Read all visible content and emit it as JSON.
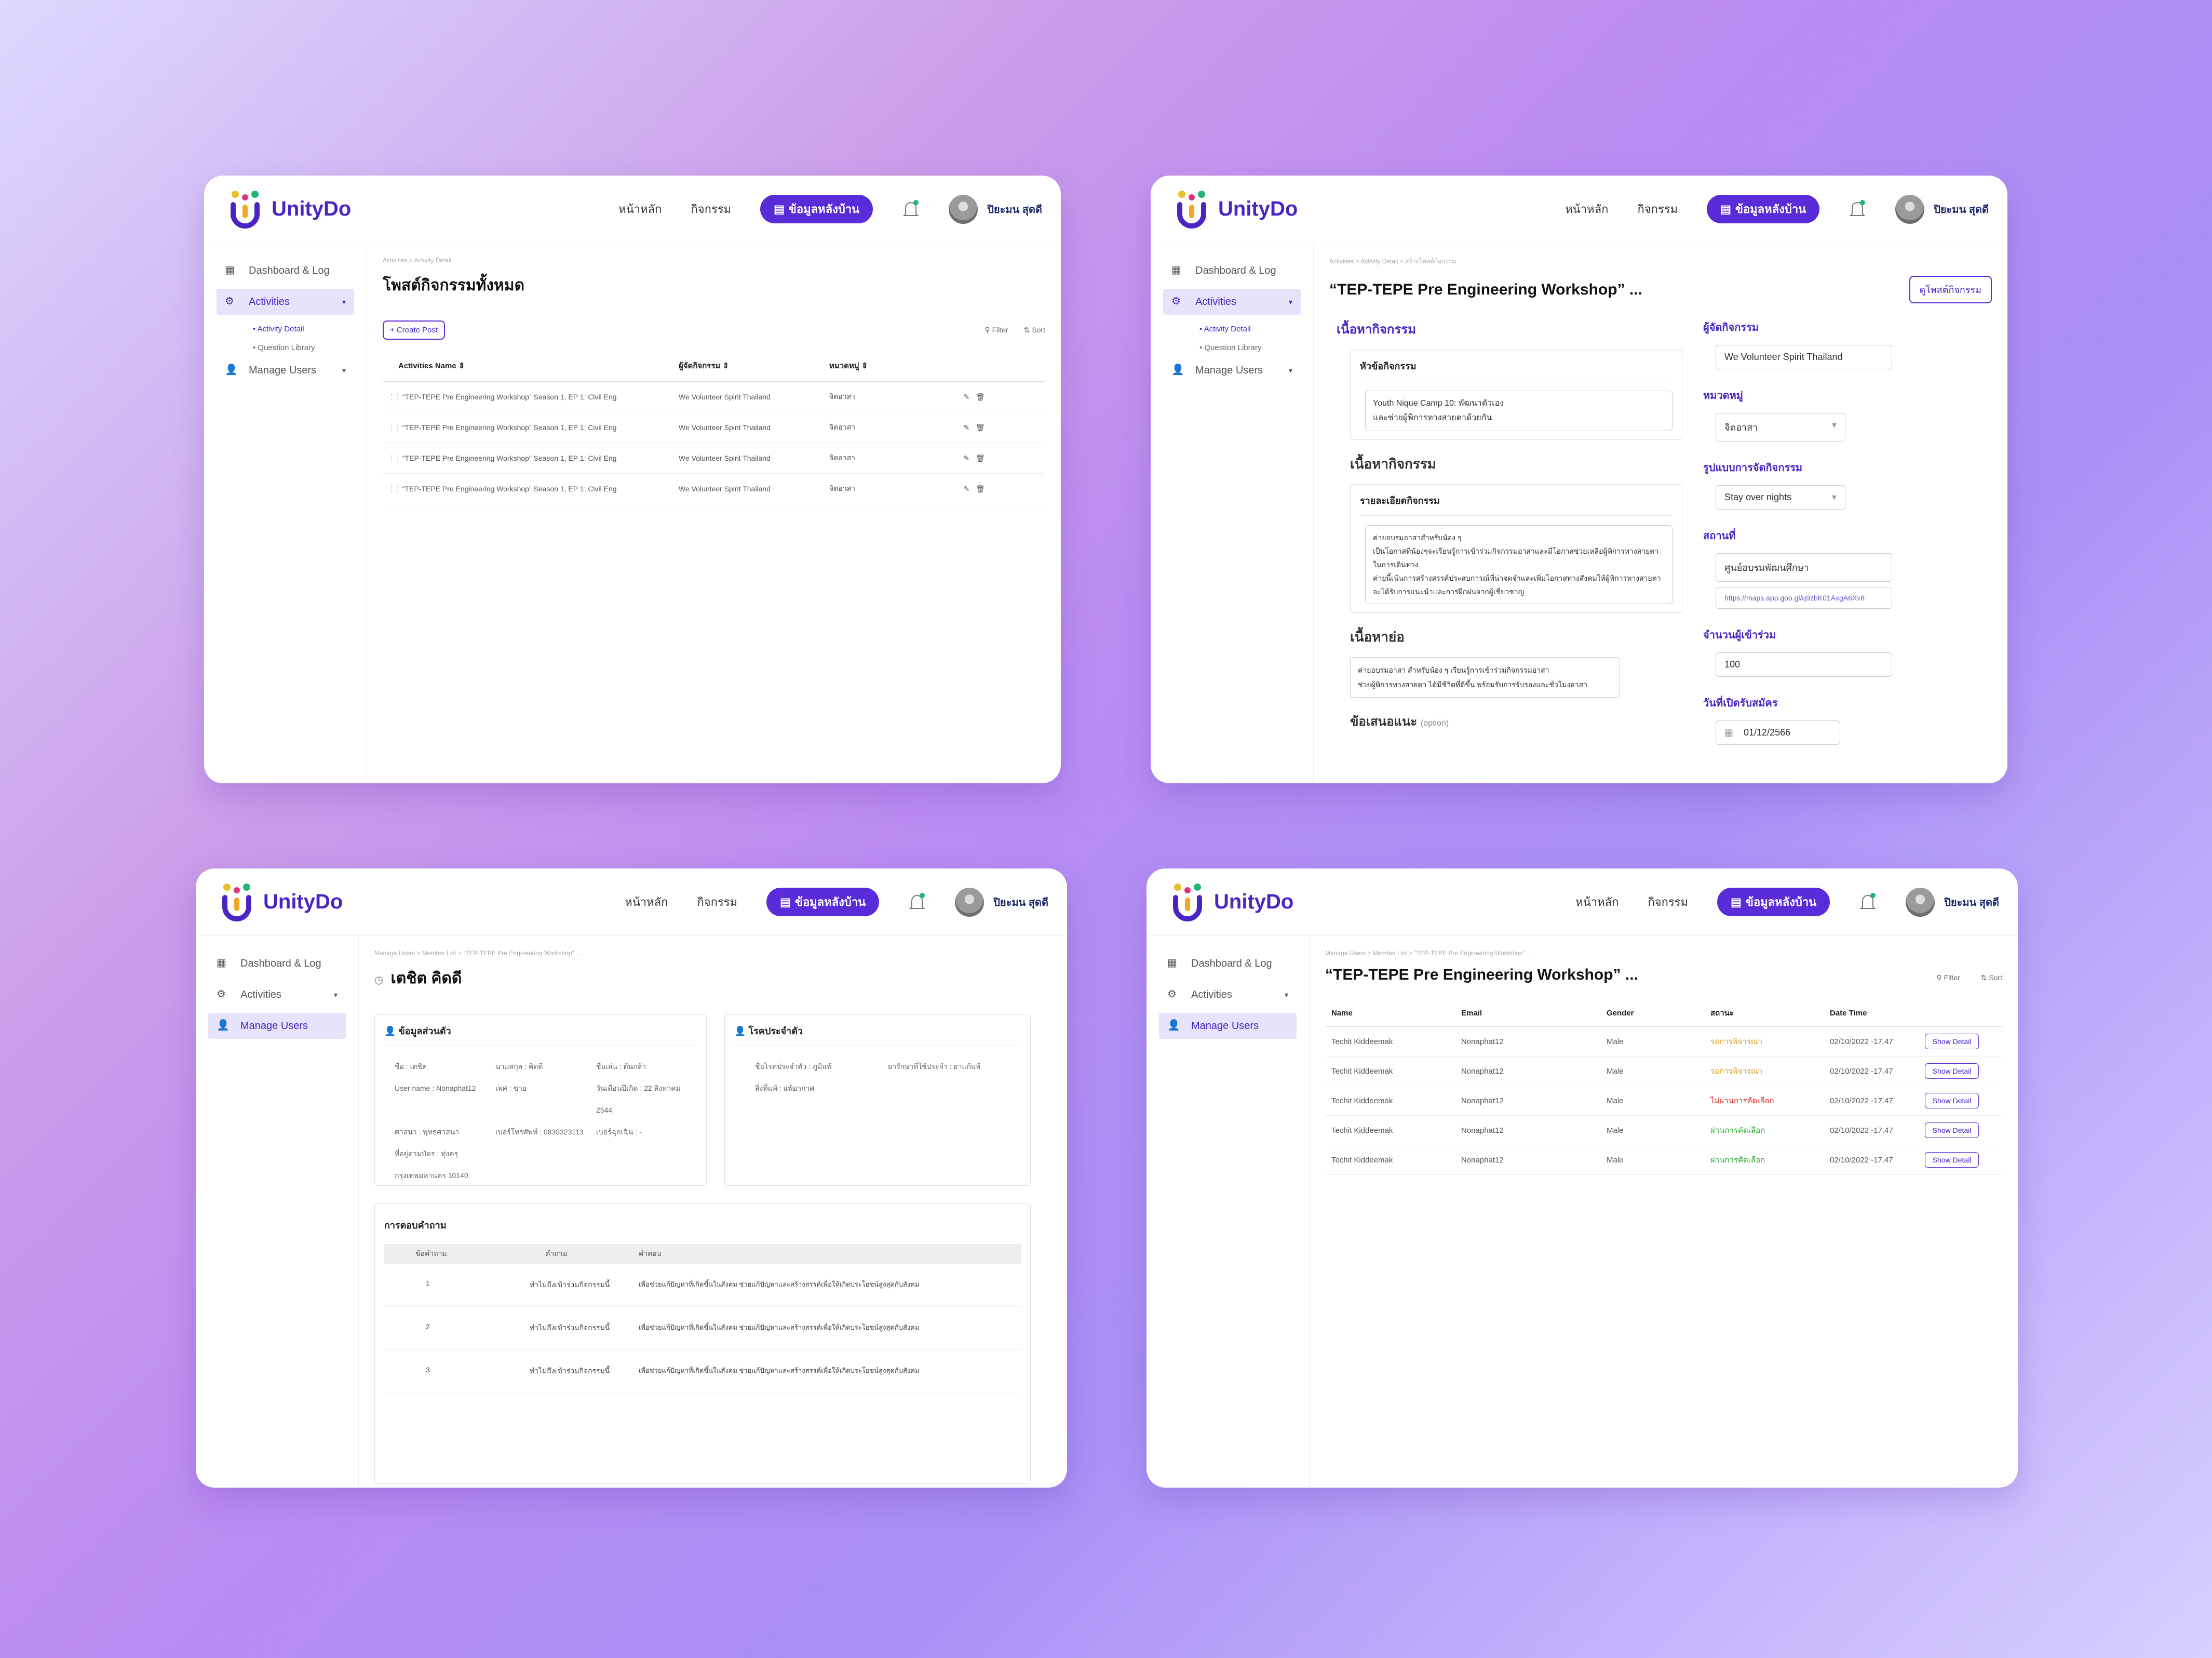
{
  "nav": {
    "brand": "UnityDo",
    "home": "หน้าหลัก",
    "activities": "กิจกรรม",
    "backend": "ข้อมูลหลังบ้าน",
    "user": "ปิยะมน สุดดี"
  },
  "sidebar": {
    "dashboard": "Dashboard & Log",
    "activities": "Activities",
    "activity_detail": "Activity Detail",
    "question_library": "Question Library",
    "manage_users": "Manage Users"
  },
  "screen1": {
    "breadcrumb": "Activities > Activity Detail",
    "title": "โพสต์กิจกรรมทั้งหมด",
    "create": "+ Create Post",
    "filter": "Filter",
    "sort": "Sort",
    "columns": [
      "Activities Name",
      "ผู้จัดกิจกรรม",
      "หมวดหมู่"
    ],
    "rows": [
      {
        "name": "“TEP-TEPE Pre Engineering Workshop” Season 1, EP 1: Civil Eng",
        "org": "We Volunteer Spirit Thailand",
        "cat": "จิตอาสา"
      },
      {
        "name": "“TEP-TEPE Pre Engineering Workshop” Season 1, EP 1: Civil Eng",
        "org": "We Volunteer Spirit Thailand",
        "cat": "จิตอาสา"
      },
      {
        "name": "“TEP-TEPE Pre Engineering Workshop” Season 1, EP 1: Civil Eng",
        "org": "We Volunteer Spirit Thailand",
        "cat": "จิตอาสา"
      },
      {
        "name": "“TEP-TEPE Pre Engineering Workshop” Season 1, EP 1: Civil Eng",
        "org": "We Volunteer Spirit Thailand",
        "cat": "จิตอาสา"
      }
    ]
  },
  "screen2": {
    "breadcrumb": "Activities > Activity Detail > สร้างโพสต์กิจกรรม",
    "title": "“TEP-TEPE Pre Engineering Workshop” ...",
    "view_post": "ดูโพสต์กิจกรรม",
    "content_h": "เนื้อหากิจกรรม",
    "topic_lbl": "หัวข้อกิจกรรม",
    "topic_val": "Youth Nique Camp 10: พัฒนาตัวเอง\nและช่วยผู้พิการทางสายตาด้วยกัน",
    "content_sub": "เนื้อหากิจกรรม",
    "detail_lbl": "รายละเอียดกิจกรรม",
    "detail_val": "ค่ายอบรมอาสาสำหรับน้อง ๆ\nเป็นโอกาสที่น้องๆจะเรียนรู้การเข้าร่วมกิจกรรมอาสาและมีโอกาสช่วยเหลือผู้พิการทางสายตาในการเดินทาง\nค่ายนี้เน้นการสร้างสรรค์ประสบการณ์ที่น่าจดจำและเพิ่มโอกาสทางสังคมให้ผู้พิการทางสายตา\nจะได้รับการแนะนำและการฝึกฝนจากผู้เชี่ยวชาญ",
    "summary_h": "เนื้อหาย่อ",
    "summary_val": "ค่ายอบรมอาสา สำหรับน้อง ๆ เรียนรู้การเข้าร่วมกิจกรรมอาสา\nช่วยผู้พิการทางสายตา ได้มีชีวิตที่ดีขึ้น พร้อมรับการรับรองและชั่วโมงอาสา",
    "suggest_h": "ข้อเสนอแนะ",
    "option": "(option)",
    "org_lbl": "ผู้จัดกิจกรรม",
    "org_val": "We Volunteer Spirit Thailand",
    "cat_lbl": "หมวดหมู่",
    "cat_val": "จิตอาสา",
    "fmt_lbl": "รูปแบบการจัดกิจกรรม",
    "fmt_val": "Stay over nights",
    "place_lbl": "สถานที่",
    "place_val": "ศูนย์อบรมพัฒนศึกษา",
    "map_val": "https://maps.app.goo.gl/q9zbK01AxgA6Xv8",
    "count_lbl": "จำนวนผู้เข้าร่วม",
    "count_val": "100",
    "open_lbl": "วันที่เปิดรับสมัคร",
    "open_val": "01/12/2566"
  },
  "screen3": {
    "breadcrumb": "Manage Users > Member List > “TEP-TEPE Pre Engineering Workshop” ...",
    "title": "เตชิต คิดดี",
    "personal_h": "ข้อมูลส่วนตัว",
    "personal": [
      "ชื่อ : เตชิต",
      "นามสกุล : คิดดี",
      "ชื่อเล่น : ต้นกล้า",
      "User name : Nonaphat12",
      "เพศ : ชาย",
      "วันเดือนปีเกิด : 22 สิงหาคม 2544",
      "ศาสนา : พุทธศาสนา",
      "เบอร์โทรศัพท์ : 0839323113",
      "เบอร์ฉุกเฉิน : -",
      "ที่อยู่ตามบัตร : ทุ่งครุ กรุงเทพมหานคร 10140"
    ],
    "health_h": "โรคประจำตัว",
    "health": [
      "ชื่อโรคประจำตัว : ภูมิแพ้",
      "ยารักษาที่ใช้ประจำ : ยาแก้แพ้",
      "สิ่งที่แพ้ : แพ้อากาศ"
    ],
    "qa_h": "การตอบคำถาม",
    "qa_cols": [
      "ข้อคำถาม",
      "คำถาม",
      "คำตอบ"
    ],
    "qa": [
      {
        "n": "1",
        "q": "ทำไมถึงเข้าร่วมกิจกรรมนี้",
        "a": "เพื่อช่วยแก้ปัญหาที่เกิดขึ้นในสังคม ช่วยแก้ปัญหาและสร้างสรรค์เพื่อให้เกิดประโยชน์สูงสุดกับสังคม"
      },
      {
        "n": "2",
        "q": "ทำไมถึงเข้าร่วมกิจกรรมนี้",
        "a": "เพื่อช่วยแก้ปัญหาที่เกิดขึ้นในสังคม ช่วยแก้ปัญหาและสร้างสรรค์เพื่อให้เกิดประโยชน์สูงสุดกับสังคม"
      },
      {
        "n": "3",
        "q": "ทำไมถึงเข้าร่วมกิจกรรมนี้",
        "a": "เพื่อช่วยแก้ปัญหาที่เกิดขึ้นในสังคม ช่วยแก้ปัญหาและสร้างสรรค์เพื่อให้เกิดประโยชน์สูงสุดกับสังคม"
      }
    ]
  },
  "screen4": {
    "breadcrumb": "Manage Users > Member List > “TEP-TEPE Pre Engineering Workshop” ...",
    "title": "“TEP-TEPE Pre Engineering Workshop” ...",
    "filter": "Filter",
    "sort": "Sort",
    "columns": [
      "Name",
      "Email",
      "Gender",
      "สถานะ",
      "Date Time"
    ],
    "show": "Show Detail",
    "rows": [
      {
        "name": "Techit Kiddeemak",
        "email": "Nonaphat12",
        "gender": "Male",
        "status": "รอการพิจารณา",
        "color": "#e0a020",
        "dt": "02/10/2022 -17.47"
      },
      {
        "name": "Techit Kiddeemak",
        "email": "Nonaphat12",
        "gender": "Male",
        "status": "รอการพิจารณา",
        "color": "#e0a020",
        "dt": "02/10/2022 -17.47"
      },
      {
        "name": "Techit Kiddeemak",
        "email": "Nonaphat12",
        "gender": "Male",
        "status": "ไม่ผ่านการคัดเลือก",
        "color": "#e03030",
        "dt": "02/10/2022 -17.47"
      },
      {
        "name": "Techit Kiddeemak",
        "email": "Nonaphat12",
        "gender": "Male",
        "status": "ผ่านการคัดเลือก",
        "color": "#2aa52a",
        "dt": "02/10/2022 -17.47"
      },
      {
        "name": "Techit Kiddeemak",
        "email": "Nonaphat12",
        "gender": "Male",
        "status": "ผ่านการคัดเลือก",
        "color": "#2aa52a",
        "dt": "02/10/2022 -17.47"
      }
    ]
  }
}
